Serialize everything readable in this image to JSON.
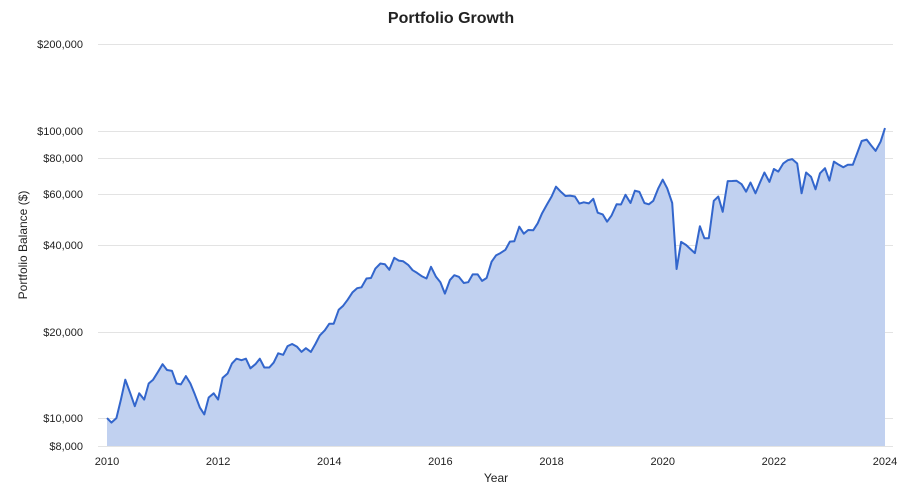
{
  "chart_data": {
    "type": "area",
    "title": "Portfolio Growth",
    "xlabel": "Year",
    "ylabel": "Portfolio Balance ($)",
    "y_scale": "log",
    "ylim": [
      8000,
      200000
    ],
    "xlim": [
      2010,
      2024
    ],
    "grid": true,
    "legend": "none",
    "x_ticks": [
      2010,
      2012,
      2014,
      2016,
      2018,
      2020,
      2022,
      2024
    ],
    "x_tick_labels": [
      "2010",
      "2012",
      "2014",
      "2016",
      "2018",
      "2020",
      "2022",
      "2024"
    ],
    "y_ticks": [
      8000,
      10000,
      20000,
      40000,
      60000,
      80000,
      100000,
      200000
    ],
    "y_tick_labels": [
      "$8,000",
      "$10,000",
      "$20,000",
      "$40,000",
      "$60,000",
      "$80,000",
      "$100,000",
      "$200,000"
    ],
    "colors": {
      "line": "#3366cc",
      "fill": "#c1d1f0"
    },
    "series": [
      {
        "x": [
          2010.0,
          2010.08,
          2010.17,
          2010.25,
          2010.33,
          2010.42,
          2010.5,
          2010.58,
          2010.67,
          2010.75,
          2010.83,
          2010.92,
          2011.0,
          2011.08,
          2011.17,
          2011.25,
          2011.33,
          2011.42,
          2011.5,
          2011.58,
          2011.67,
          2011.75,
          2011.83,
          2011.92,
          2012.0,
          2012.08,
          2012.17,
          2012.25,
          2012.33,
          2012.42,
          2012.5,
          2012.58,
          2012.67,
          2012.75,
          2012.83,
          2012.92,
          2013.0,
          2013.08,
          2013.17,
          2013.25,
          2013.33,
          2013.42,
          2013.5,
          2013.58,
          2013.67,
          2013.75,
          2013.83,
          2013.92,
          2014.0,
          2014.08,
          2014.17,
          2014.25,
          2014.33,
          2014.42,
          2014.5,
          2014.58,
          2014.67,
          2014.75,
          2014.83,
          2014.92,
          2015.0,
          2015.08,
          2015.17,
          2015.25,
          2015.33,
          2015.42,
          2015.5,
          2015.58,
          2015.67,
          2015.75,
          2015.83,
          2015.92,
          2016.0,
          2016.08,
          2016.17,
          2016.25,
          2016.33,
          2016.42,
          2016.5,
          2016.58,
          2016.67,
          2016.75,
          2016.83,
          2016.92,
          2017.0,
          2017.08,
          2017.17,
          2017.25,
          2017.33,
          2017.42,
          2017.5,
          2017.58,
          2017.67,
          2017.75,
          2017.83,
          2017.92,
          2018.0,
          2018.08,
          2018.17,
          2018.25,
          2018.33,
          2018.42,
          2018.5,
          2018.58,
          2018.67,
          2018.75,
          2018.83,
          2018.92,
          2019.0,
          2019.08,
          2019.17,
          2019.25,
          2019.33,
          2019.42,
          2019.5,
          2019.58,
          2019.67,
          2019.75,
          2019.83,
          2019.92,
          2020.0,
          2020.08,
          2020.17,
          2020.25,
          2020.33,
          2020.42,
          2020.5,
          2020.58,
          2020.67,
          2020.75,
          2020.83,
          2020.92,
          2021.0,
          2021.08,
          2021.17,
          2021.25,
          2021.33,
          2021.42,
          2021.5,
          2021.58,
          2021.67,
          2021.75,
          2021.83,
          2021.92,
          2022.0,
          2022.08,
          2022.17,
          2022.25,
          2022.33,
          2022.42,
          2022.5,
          2022.58,
          2022.67,
          2022.75,
          2022.83,
          2022.92,
          2023.0,
          2023.08,
          2023.17,
          2023.25,
          2023.33,
          2023.42,
          2023.5,
          2023.58,
          2023.67,
          2023.75,
          2023.83,
          2023.92,
          2024.0
        ],
        "values": [
          10000,
          9650,
          10000,
          11600,
          13600,
          12200,
          11000,
          12200,
          11600,
          13200,
          13600,
          14500,
          15400,
          14700,
          14600,
          13200,
          13100,
          14000,
          13200,
          12100,
          10900,
          10300,
          11800,
          12200,
          11600,
          13800,
          14300,
          15500,
          16100,
          15900,
          16100,
          14900,
          15400,
          16100,
          15000,
          15000,
          15600,
          16800,
          16600,
          17800,
          18100,
          17700,
          17000,
          17500,
          17000,
          18100,
          19400,
          20200,
          21300,
          21300,
          23800,
          24600,
          25800,
          27400,
          28300,
          28500,
          30600,
          30700,
          33100,
          34500,
          34300,
          32800,
          36100,
          35300,
          35100,
          34100,
          32700,
          32000,
          31100,
          30600,
          33600,
          31000,
          29700,
          27100,
          30200,
          31400,
          31000,
          29500,
          29700,
          31600,
          31600,
          30000,
          30700,
          35000,
          36800,
          37500,
          38500,
          41100,
          41200,
          46300,
          43800,
          45100,
          45000,
          47600,
          51600,
          55400,
          59000,
          63800,
          61200,
          59200,
          59400,
          59000,
          55700,
          56300,
          55800,
          57900,
          51800,
          51100,
          48200,
          50700,
          55400,
          55300,
          59800,
          56000,
          61800,
          61200,
          56000,
          55400,
          57000,
          63000,
          67500,
          63000,
          56000,
          33000,
          41000,
          40000,
          38700,
          37500,
          46500,
          42200,
          42200,
          57000,
          59000,
          52200,
          66700,
          66800,
          66900,
          65100,
          61300,
          66000,
          60500,
          66000,
          71500,
          66300,
          73500,
          72000,
          76900,
          78900,
          79600,
          76800,
          60500,
          71500,
          69000,
          62500,
          71000,
          74000,
          67000,
          78000,
          76000,
          74500,
          76000,
          76000,
          83500,
          92000,
          93000,
          88800,
          85000,
          91500,
          102000
        ]
      }
    ]
  }
}
